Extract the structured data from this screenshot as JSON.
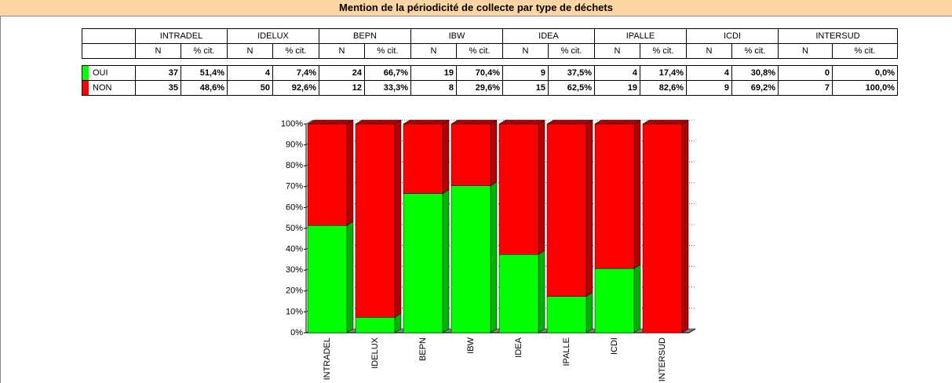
{
  "title": "Mention de la périodicité de collecte par type de déchets",
  "table": {
    "groups": [
      "INTRADEL",
      "IDELUX",
      "BEPN",
      "IBW",
      "IDEA",
      "IPALLE",
      "ICDI",
      "INTERSUD"
    ],
    "subheader": [
      "N",
      "% cit.",
      "N",
      "% cit.",
      "N",
      "% cit.",
      "N",
      "% cit.",
      "N",
      "% cit.",
      "N",
      "% cit.",
      "N",
      "% cit.",
      "N",
      "% cit."
    ],
    "rows": [
      [
        "37",
        "51,4%",
        "4",
        "7,4%",
        "24",
        "66,7%",
        "19",
        "70,4%",
        "9",
        "37,5%",
        "4",
        "17,4%",
        "4",
        "30,8%",
        "0",
        "0,0%"
      ],
      [
        "35",
        "48,6%",
        "50",
        "92,6%",
        "12",
        "33,3%",
        "8",
        "29,6%",
        "15",
        "62,5%",
        "19",
        "82,6%",
        "9",
        "69,2%",
        "7",
        "100,0%"
      ]
    ]
  },
  "chart_data": {
    "type": "stacked_bar_3d",
    "categories": [
      "INTRADEL",
      "IDELUX",
      "BEPN",
      "IBW",
      "IDEA",
      "IPALLE",
      "ICDI",
      "INTERSUD"
    ],
    "series": [
      {
        "name": "OUI",
        "color": "#00ff00",
        "values": [
          51.4,
          7.4,
          66.7,
          70.4,
          37.5,
          17.4,
          30.8,
          0
        ]
      },
      {
        "name": "NON",
        "color": "#ff0000",
        "values": [
          48.6,
          92.6,
          33.3,
          29.6,
          62.5,
          82.6,
          69.2,
          100
        ]
      }
    ],
    "ylim": [
      0,
      100
    ],
    "yticks": [
      {
        "value": 0,
        "label": "0%"
      },
      {
        "value": 10,
        "label": "10%"
      },
      {
        "value": 20,
        "label": "20%"
      },
      {
        "value": 30,
        "label": "30%"
      },
      {
        "value": 40,
        "label": "40%"
      },
      {
        "value": 50,
        "label": "50%"
      },
      {
        "value": 60,
        "label": "60%"
      },
      {
        "value": 70,
        "label": "70%"
      },
      {
        "value": 80,
        "label": "80%"
      },
      {
        "value": 90,
        "label": "90%"
      },
      {
        "value": 100,
        "label": "100%"
      }
    ],
    "grid": true
  }
}
